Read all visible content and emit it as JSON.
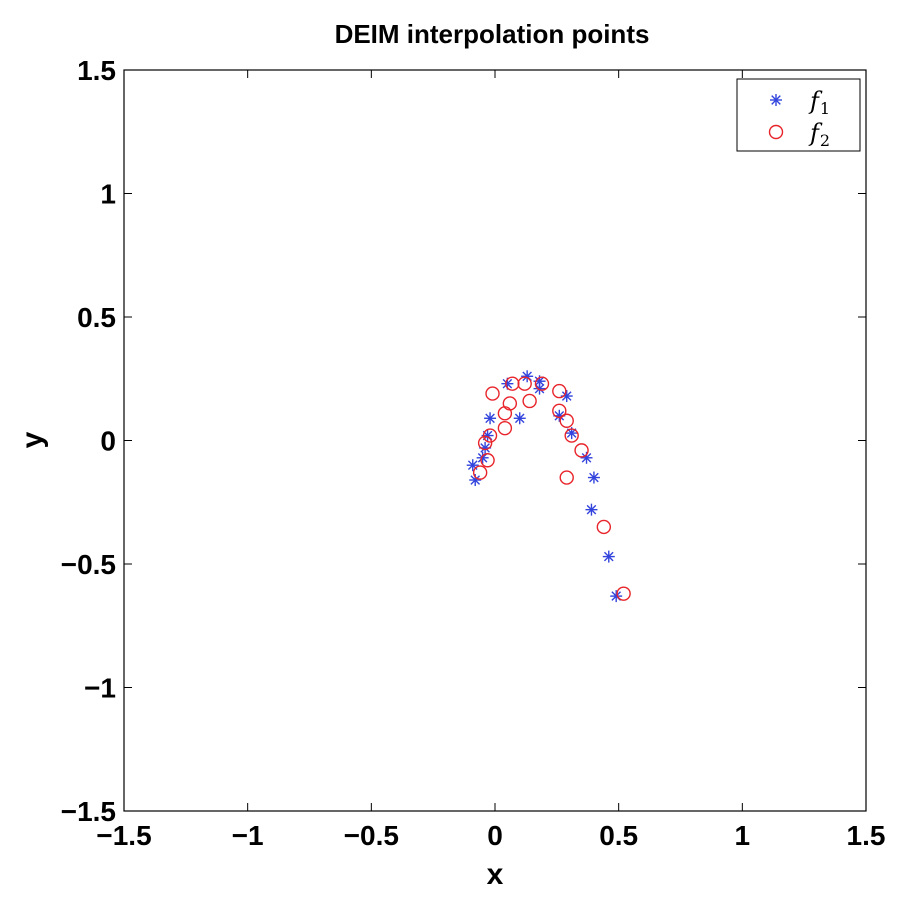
{
  "chart_data": {
    "type": "scatter",
    "title": "DEIM interpolation points",
    "xlabel": "x",
    "ylabel": "y",
    "xlim": [
      -1.5,
      1.5
    ],
    "ylim": [
      -1.5,
      1.5
    ],
    "xticks": [
      -1.5,
      -1,
      -0.5,
      0,
      0.5,
      1,
      1.5
    ],
    "yticks": [
      -1.5,
      -1,
      -0.5,
      0,
      0.5,
      1,
      1.5
    ],
    "xtick_labels": [
      "−1.5",
      "−1",
      "−0.5",
      "0",
      "0.5",
      "1",
      "1.5"
    ],
    "ytick_labels": [
      "−1.5",
      "−1",
      "−0.5",
      "0",
      "0.5",
      "1",
      "1.5"
    ],
    "grid": false,
    "legend_position": "top-right",
    "series": [
      {
        "name": "f",
        "subscript": "1",
        "marker": "asterisk",
        "color": "#3344dd",
        "points": [
          [
            -0.09,
            -0.1
          ],
          [
            -0.08,
            -0.16
          ],
          [
            -0.05,
            -0.07
          ],
          [
            -0.04,
            -0.03
          ],
          [
            -0.03,
            0.02
          ],
          [
            -0.02,
            0.09
          ],
          [
            0.05,
            0.23
          ],
          [
            0.1,
            0.09
          ],
          [
            0.13,
            0.26
          ],
          [
            0.18,
            0.21
          ],
          [
            0.18,
            0.24
          ],
          [
            0.26,
            0.1
          ],
          [
            0.29,
            0.18
          ],
          [
            0.31,
            0.03
          ],
          [
            0.37,
            -0.07
          ],
          [
            0.39,
            -0.28
          ],
          [
            0.4,
            -0.15
          ],
          [
            0.46,
            -0.47
          ],
          [
            0.49,
            -0.63
          ]
        ]
      },
      {
        "name": "f",
        "subscript": "2",
        "marker": "circle",
        "color": "#e8242a",
        "points": [
          [
            -0.06,
            -0.13
          ],
          [
            -0.04,
            -0.01
          ],
          [
            -0.03,
            -0.08
          ],
          [
            -0.02,
            0.02
          ],
          [
            -0.01,
            0.19
          ],
          [
            0.04,
            0.05
          ],
          [
            0.04,
            0.11
          ],
          [
            0.06,
            0.15
          ],
          [
            0.07,
            0.23
          ],
          [
            0.12,
            0.23
          ],
          [
            0.14,
            0.16
          ],
          [
            0.19,
            0.23
          ],
          [
            0.26,
            0.2
          ],
          [
            0.26,
            0.12
          ],
          [
            0.29,
            0.08
          ],
          [
            0.29,
            -0.15
          ],
          [
            0.31,
            0.02
          ],
          [
            0.35,
            -0.04
          ],
          [
            0.44,
            -0.35
          ],
          [
            0.52,
            -0.62
          ]
        ]
      }
    ]
  }
}
